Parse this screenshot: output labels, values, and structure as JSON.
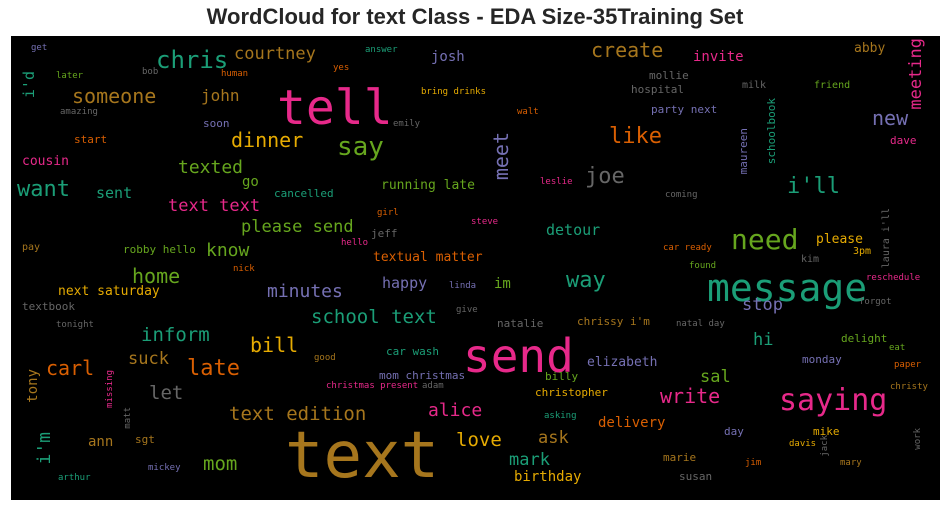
{
  "title": "WordCloud for text Class - EDA Size-35Training Set",
  "colors": {
    "pink": "#e7298a",
    "orange": "#d95f02",
    "green": "#1b9e77",
    "olive": "#66a61e",
    "gold": "#a6761d",
    "purple": "#7570b3",
    "yellow": "#e6ab02",
    "gray": "#666666"
  },
  "words": {
    "text": "text",
    "send": "send",
    "tell": "tell",
    "message": "message",
    "saying": "saying",
    "need": "need",
    "say": "say",
    "chris": "chris",
    "someone": "someone",
    "create": "create",
    "courtney": "courtney",
    "josh": "josh",
    "john": "john",
    "dinner": "dinner",
    "like": "like",
    "meet": "meet",
    "joe": "joe",
    "want": "want",
    "texted": "texted",
    "go": "go",
    "sent": "sent",
    "text_text": "text text",
    "please_send": "please send",
    "running_late": "running late",
    "cancelled": "cancelled",
    "i_ll": "i'll",
    "new": "new",
    "meeting": "meeting",
    "cousin": "cousin",
    "invite": "invite",
    "mollie": "mollie",
    "hospital": "hospital",
    "party_next": "party next",
    "home": "home",
    "know": "know",
    "detour": "detour",
    "please": "please",
    "minutes": "minutes",
    "textual_matter": "textual matter",
    "happy": "happy",
    "way": "way",
    "im": "im",
    "stop": "stop",
    "next_saturday": "next saturday",
    "school_text": "school text",
    "inform": "inform",
    "bill": "bill",
    "carl": "carl",
    "suck": "suck",
    "late": "late",
    "let": "let",
    "hi": "hi",
    "sal": "sal",
    "elizabeth": "elizabeth",
    "write": "write",
    "text_edition": "text edition",
    "alice": "alice",
    "love": "love",
    "ask": "ask",
    "mark": "mark",
    "mom": "mom",
    "i_m": "i'm",
    "birthday": "birthday",
    "delivery": "delivery",
    "tony": "tony",
    "ann": "ann",
    "abby": "abby",
    "i_d": "i'd",
    "someone_small": "soon",
    "start": "start",
    "robby_hello": "robby hello",
    "jeff": "jeff",
    "schoolbook": "schoolbook",
    "maureen": "maureen",
    "dave": "dave",
    "friend": "friend",
    "milk": "milk",
    "answer": "answer",
    "yes": "yes",
    "bob": "bob",
    "human": "human",
    "later": "later",
    "get": "get",
    "amazing": "amazing",
    "bring_drinks": "bring drinks",
    "walt": "walt",
    "emily": "emily",
    "leslie": "leslie",
    "coming": "coming",
    "steve": "steve",
    "girl": "girl",
    "hello": "hello",
    "pay": "pay",
    "nick": "nick",
    "car_ready": "car ready",
    "found": "found",
    "kim": "kim",
    "three_pm": "3pm",
    "laura_i_ll": "laura i'll",
    "reschedule": "reschedule",
    "forgot": "forgot",
    "textbook": "textbook",
    "tonight": "tonight",
    "linda": "linda",
    "give": "give",
    "natalie": "natalie",
    "chrissy_i_m": "chrissy i'm",
    "natal_day": "natal day",
    "delight": "delight",
    "eat": "eat",
    "missing": "missing",
    "good": "good",
    "car_wash": "car wash",
    "mom_christmas": "mom christmas",
    "billy": "billy",
    "christopher": "christopher",
    "christmas_present": "christmas present",
    "adam": "adam",
    "monday": "monday",
    "paper": "paper",
    "christy": "christy",
    "matt": "matt",
    "sgt": "sgt",
    "asking": "asking",
    "day": "day",
    "mike": "mike",
    "davis": "davis",
    "jack": "jack",
    "work": "work",
    "mickey": "mickey",
    "arthur": "arthur",
    "marie": "marie",
    "jim": "jim",
    "mary": "mary",
    "susan": "susan"
  }
}
